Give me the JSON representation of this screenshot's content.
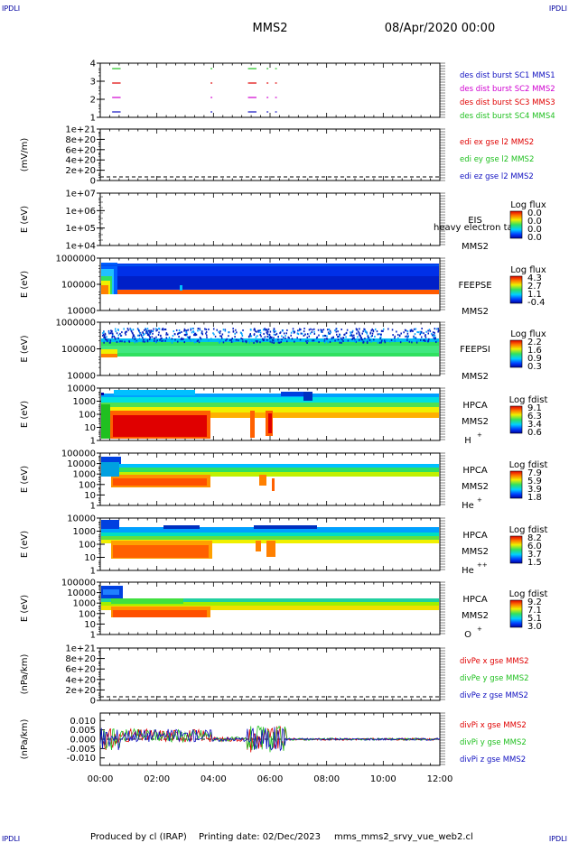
{
  "header": {
    "corner_tl": "IPDLI",
    "corner_tr": "IPDLI",
    "corner_bl": "IPDLI",
    "corner_br": "IPDLI",
    "title": "MMS2",
    "date": "08/Apr/2020 00:00"
  },
  "footer": {
    "produced_by": "Produced by cl (IRAP)",
    "printing_date": "Printing date: 02/Dec/2023",
    "script": "mms_mms2_srvy_vue_web2.cl"
  },
  "colors": {
    "mms1": "#1010c0",
    "mms2": "#d000d0",
    "mms3": "#e00000",
    "mms4": "#20c020",
    "x": "#e00000",
    "y": "#20c020",
    "z": "#1010c0"
  },
  "x_axis": {
    "ticks": [
      "00:00",
      "02:00",
      "04:00",
      "06:00",
      "08:00",
      "10:00",
      "12:00"
    ]
  },
  "chart_data": [
    {
      "type": "line",
      "name": "burst",
      "yticks": [
        "1",
        "2",
        "3",
        "4"
      ],
      "legend": [
        "des dist burst SC1 MMS1",
        "des dist burst SC2 MMS2",
        "des dist burst SC3 MMS3",
        "des dist burst SC4 MMS4"
      ]
    },
    {
      "type": "line",
      "name": "edi",
      "ylabel": "(mV/m)",
      "yticks": [
        "0",
        "2e+20",
        "4e+20",
        "6e+20",
        "8e+20",
        "1e+21"
      ],
      "legend": [
        "edi ex gse l2 MMS2",
        "edi ey gse l2 MMS2",
        "edi ez gse l2 MMS2"
      ]
    },
    {
      "type": "heatmap",
      "name": "eis",
      "ylabel": "E (eV)",
      "yticks": [
        "1e+04",
        "1e+05",
        "1e+06",
        "1e+07"
      ],
      "instrument": "EIS",
      "overlay": "heavy electron ta",
      "probe": "MMS2",
      "cbar_title": "Log flux",
      "cbar_ticks": [
        "0.0",
        "0.0",
        "0.0",
        "0.0"
      ]
    },
    {
      "type": "heatmap",
      "name": "feepse",
      "ylabel": "E (eV)",
      "yticks": [
        "10000",
        "100000",
        "1000000"
      ],
      "instrument": "FEEPSE",
      "probe": "MMS2",
      "cbar_title": "Log flux",
      "cbar_ticks": [
        "4.3",
        "2.7",
        "1.1",
        "-0.4"
      ]
    },
    {
      "type": "heatmap",
      "name": "feepsi",
      "ylabel": "E (eV)",
      "yticks": [
        "10000",
        "100000",
        "1000000"
      ],
      "instrument": "FEEPSI",
      "probe": "MMS2",
      "cbar_title": "Log flux",
      "cbar_ticks": [
        "2.2",
        "1.6",
        "0.9",
        "0.3"
      ]
    },
    {
      "type": "heatmap",
      "name": "hpca-h",
      "ylabel": "E (eV)",
      "yticks": [
        "1",
        "10",
        "100",
        "1000",
        "10000"
      ],
      "instrument": "HPCA",
      "probe": "MMS2",
      "species": "H",
      "species_sup": "+",
      "cbar_title": "Log fdist",
      "cbar_ticks": [
        "9.1",
        "6.3",
        "3.4",
        "0.6"
      ]
    },
    {
      "type": "heatmap",
      "name": "hpca-he",
      "ylabel": "E (eV)",
      "yticks": [
        "1",
        "10",
        "100",
        "1000",
        "10000",
        "100000"
      ],
      "instrument": "HPCA",
      "probe": "MMS2",
      "species": "He",
      "species_sup": "+",
      "cbar_title": "Log fdist",
      "cbar_ticks": [
        "7.9",
        "5.9",
        "3.9",
        "1.8"
      ]
    },
    {
      "type": "heatmap",
      "name": "hpca-hepp",
      "ylabel": "E (eV)",
      "yticks": [
        "1",
        "10",
        "100",
        "1000",
        "10000"
      ],
      "instrument": "HPCA",
      "probe": "MMS2",
      "species": "He",
      "species_sup": "++",
      "cbar_title": "Log fdist",
      "cbar_ticks": [
        "8.2",
        "6.0",
        "3.7",
        "1.5"
      ]
    },
    {
      "type": "heatmap",
      "name": "hpca-o",
      "ylabel": "E (eV)",
      "yticks": [
        "1",
        "10",
        "100",
        "1000",
        "10000",
        "100000"
      ],
      "instrument": "HPCA",
      "probe": "MMS2",
      "species": "O",
      "species_sup": "+",
      "cbar_title": "Log fdist",
      "cbar_ticks": [
        "9.2",
        "7.1",
        "5.1",
        "3.0"
      ]
    },
    {
      "type": "line",
      "name": "divpe",
      "ylabel": "(nPa/km)",
      "yticks": [
        "0",
        "2e+20",
        "4e+20",
        "6e+20",
        "8e+20",
        "1e+21"
      ],
      "legend": [
        "divPe x gse MMS2",
        "divPe y gse MMS2",
        "divPe z gse MMS2"
      ]
    },
    {
      "type": "line",
      "name": "divpi",
      "ylabel": "(nPa/km)",
      "yticks": [
        "-0.010",
        "-0.005",
        "0.000",
        "0.005",
        "0.010"
      ],
      "ylim": [
        -0.014,
        0.014
      ],
      "legend": [
        "divPi x gse MMS2",
        "divPi y gse MMS2",
        "divPi z gse MMS2"
      ]
    }
  ]
}
